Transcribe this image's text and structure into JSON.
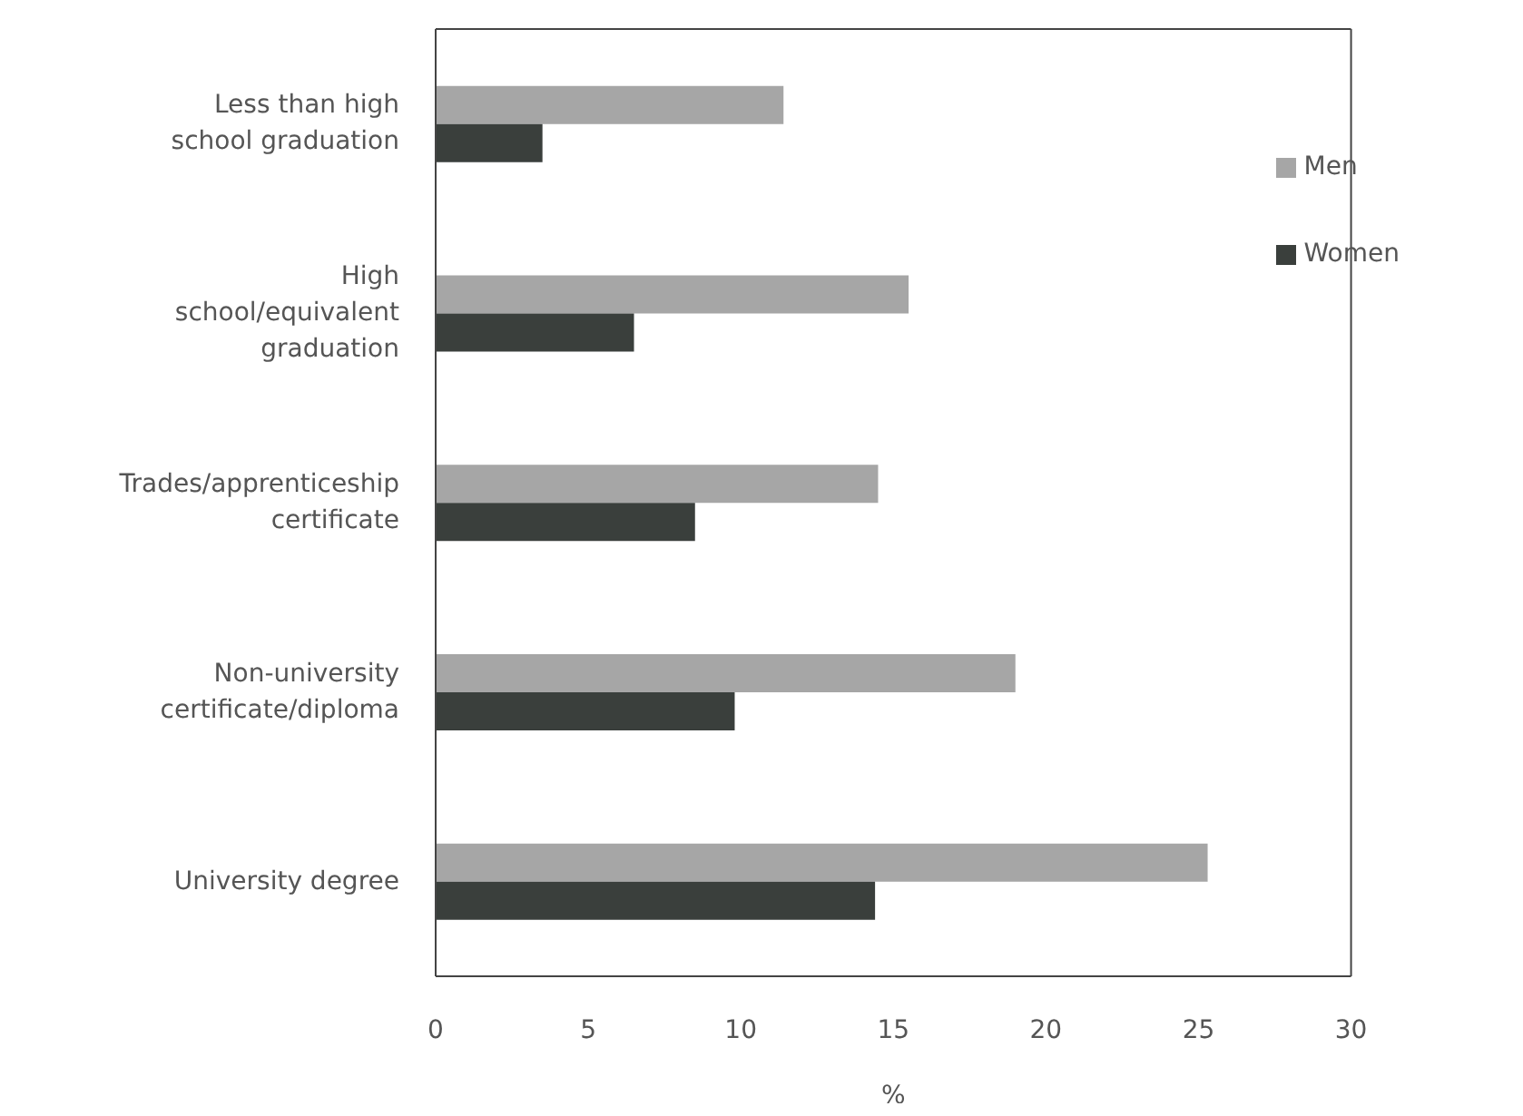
{
  "chart_data": {
    "type": "bar",
    "orientation": "horizontal",
    "xlabel": "%",
    "categories": [
      "Less than high school graduation",
      "High school/equivalent graduation",
      "Trades/apprenticeship certificate",
      "Non-university certificate/diploma",
      "University degree"
    ],
    "series": [
      {
        "name": "Men",
        "color": "#a6a6a6",
        "values": [
          11.4,
          15.5,
          14.5,
          19.0,
          25.3
        ]
      },
      {
        "name": "Women",
        "color": "#3a3f3c",
        "values": [
          3.5,
          6.5,
          8.5,
          9.8,
          14.4
        ]
      }
    ],
    "xlim": [
      0,
      30
    ],
    "xticks": [
      0,
      5,
      10,
      15,
      20,
      25,
      30
    ],
    "legend": "top right"
  }
}
